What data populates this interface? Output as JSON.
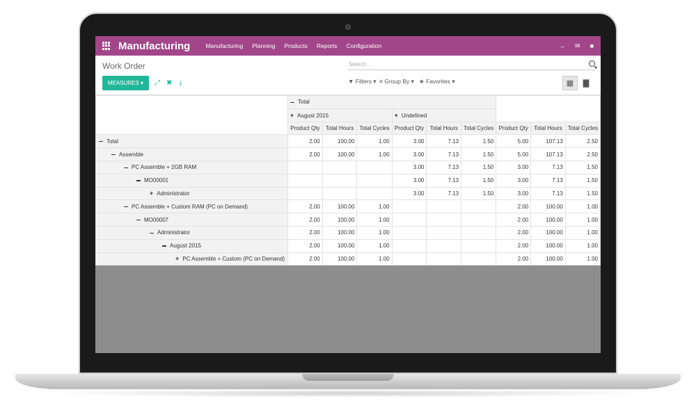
{
  "topbar": {
    "app_title": "Manufacturing",
    "menu": [
      "Manufacturing",
      "Planning",
      "Products",
      "Reports",
      "Configuration"
    ],
    "icons": [
      "login-icon",
      "envelope-icon",
      "chat-icon"
    ]
  },
  "control": {
    "breadcrumb": "Work Order",
    "search_placeholder": "Search...",
    "measures_label": "MEASURES",
    "filters_label": "Filters",
    "group_by_label": "Group By",
    "favorites_label": "Favorites"
  },
  "pivot": {
    "col_total": "Total",
    "col_groups": [
      "August 2015",
      "Undefined"
    ],
    "measures": [
      "Product Qty",
      "Total Hours",
      "Total Cycles"
    ],
    "rows": [
      {
        "label": "Total",
        "toggle": "minus",
        "bold": true,
        "aug": [
          "2.00",
          "100.00",
          "1.00"
        ],
        "und": [
          "3.00",
          "7.13",
          "1.50"
        ],
        "tot": [
          "5.00",
          "107.13",
          "2.50"
        ]
      },
      {
        "label": "Assemble",
        "toggle": "minus",
        "aug": [
          "2.00",
          "100.00",
          "1.00"
        ],
        "und": [
          "3.00",
          "7.13",
          "1.50"
        ],
        "tot": [
          "5.00",
          "107.13",
          "2.50"
        ]
      },
      {
        "label": "PC Assemble + 2GB RAM",
        "toggle": "minus",
        "aug": [
          "",
          "",
          ""
        ],
        "und": [
          "3.00",
          "7.13",
          "1.50"
        ],
        "tot": [
          "3.00",
          "7.13",
          "1.50"
        ]
      },
      {
        "label": "MO00001",
        "toggle": "minus",
        "aug": [
          "",
          "",
          ""
        ],
        "und": [
          "3.00",
          "7.13",
          "1.50"
        ],
        "tot": [
          "3.00",
          "7.13",
          "1.50"
        ]
      },
      {
        "label": "Administrator",
        "toggle": "plus",
        "aug": [
          "",
          "",
          ""
        ],
        "und": [
          "3.00",
          "7.13",
          "1.50"
        ],
        "tot": [
          "3.00",
          "7.13",
          "1.50"
        ]
      },
      {
        "label": "PC Assemble + Custom RAM (PC on Demand)",
        "toggle": "minus",
        "aug": [
          "2.00",
          "100.00",
          "1.00"
        ],
        "und": [
          "",
          "",
          ""
        ],
        "tot": [
          "2.00",
          "100.00",
          "1.00"
        ]
      },
      {
        "label": "MO00007",
        "toggle": "minus",
        "aug": [
          "2.00",
          "100.00",
          "1.00"
        ],
        "und": [
          "",
          "",
          ""
        ],
        "tot": [
          "2.00",
          "100.00",
          "1.00"
        ]
      },
      {
        "label": "Administrator",
        "toggle": "minus",
        "aug": [
          "2.00",
          "100.00",
          "1.00"
        ],
        "und": [
          "",
          "",
          ""
        ],
        "tot": [
          "2.00",
          "100.00",
          "1.00"
        ]
      },
      {
        "label": "August 2015",
        "toggle": "minus",
        "aug": [
          "2.00",
          "100.00",
          "1.00"
        ],
        "und": [
          "",
          "",
          ""
        ],
        "tot": [
          "2.00",
          "100.00",
          "1.00"
        ]
      },
      {
        "label": "PC Assemble + Custom (PC on Demand)",
        "toggle": "plus",
        "aug": [
          "2.00",
          "100.00",
          "1.00"
        ],
        "und": [
          "",
          "",
          ""
        ],
        "tot": [
          "2.00",
          "100.00",
          "1.00"
        ]
      }
    ]
  },
  "colors": {
    "brand": "#a24689",
    "accent": "#21b799"
  }
}
